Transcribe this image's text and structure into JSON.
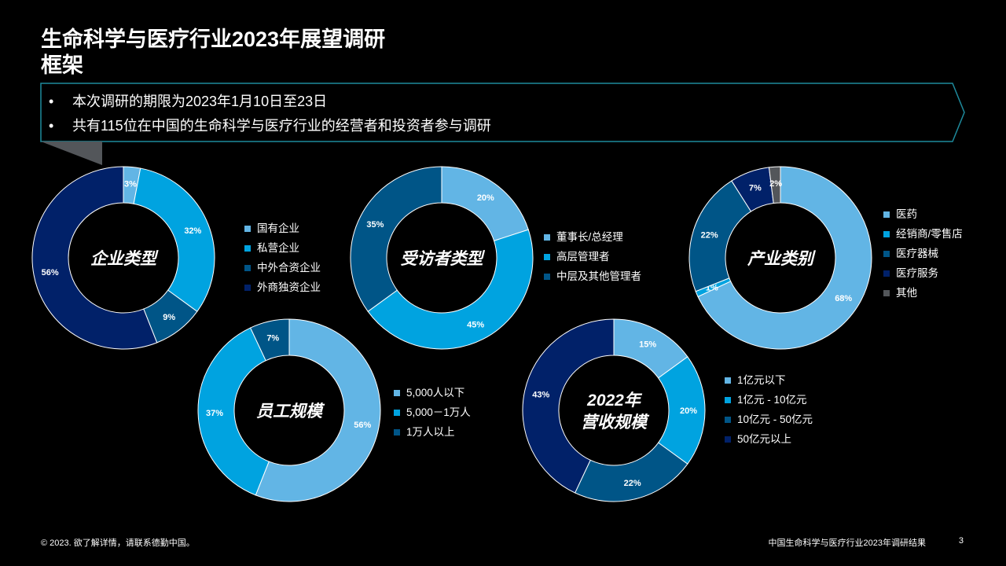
{
  "title": {
    "line1": "生命科学与医疗行业2023年展望调研",
    "line2": "框架"
  },
  "bullets": [
    "本次调研的期限为2023年1月10日至23日",
    "共有115位在中国的生命科学与医疗行业的经营者和投资者参与调研"
  ],
  "colors": {
    "light_blue": "#62B5E5",
    "bright_blue": "#00A3E0",
    "mid_blue": "#005587",
    "navy": "#012169",
    "gray": "#53565A",
    "teal_border": "#1E8A9C"
  },
  "chart_data": [
    {
      "type": "donut",
      "title": "企业类型",
      "categories": [
        "国有企业",
        "私营企业",
        "中外合资企业",
        "外商独资企业"
      ],
      "values": [
        3,
        32,
        9,
        56
      ],
      "labels": [
        "3%",
        "32%",
        "9%",
        "56%"
      ],
      "colors": [
        "#62B5E5",
        "#00A3E0",
        "#005587",
        "#012169"
      ]
    },
    {
      "type": "donut",
      "title": "受访者类型",
      "categories": [
        "董事长/总经理",
        "高层管理者",
        "中层及其他管理者"
      ],
      "values": [
        20,
        45,
        35
      ],
      "labels": [
        "20%",
        "45%",
        "35%"
      ],
      "colors": [
        "#62B5E5",
        "#00A3E0",
        "#005587"
      ]
    },
    {
      "type": "donut",
      "title": "产业类别",
      "categories": [
        "医药",
        "经销商/零售店",
        "医疗器械",
        "医疗服务",
        "其他"
      ],
      "values": [
        68,
        1,
        22,
        7,
        2
      ],
      "labels": [
        "68%",
        "1%",
        "22%",
        "7%",
        "2%"
      ],
      "colors": [
        "#62B5E5",
        "#00A3E0",
        "#005587",
        "#012169",
        "#53565A"
      ]
    },
    {
      "type": "donut",
      "title": "员工规模",
      "categories": [
        "5,000人以下",
        "5,000－1万人",
        "1万人以上"
      ],
      "values": [
        56,
        37,
        7
      ],
      "labels": [
        "56%",
        "37%",
        "7%"
      ],
      "colors": [
        "#62B5E5",
        "#00A3E0",
        "#005587"
      ]
    },
    {
      "type": "donut",
      "title_lines": [
        "2022年",
        "营收规模"
      ],
      "categories": [
        "1亿元以下",
        "1亿元 - 10亿元",
        "10亿元 - 50亿元",
        "50亿元以上"
      ],
      "values": [
        15,
        20,
        22,
        43
      ],
      "labels": [
        "15%",
        "20%",
        "22%",
        "43%"
      ],
      "colors": [
        "#62B5E5",
        "#00A3E0",
        "#005587",
        "#012169"
      ]
    }
  ],
  "footer": {
    "copyright": "© 2023. 欲了解详情，请联系德勤中国。",
    "report": "中国生命科学与医疗行业2023年调研结果",
    "page": "3"
  }
}
